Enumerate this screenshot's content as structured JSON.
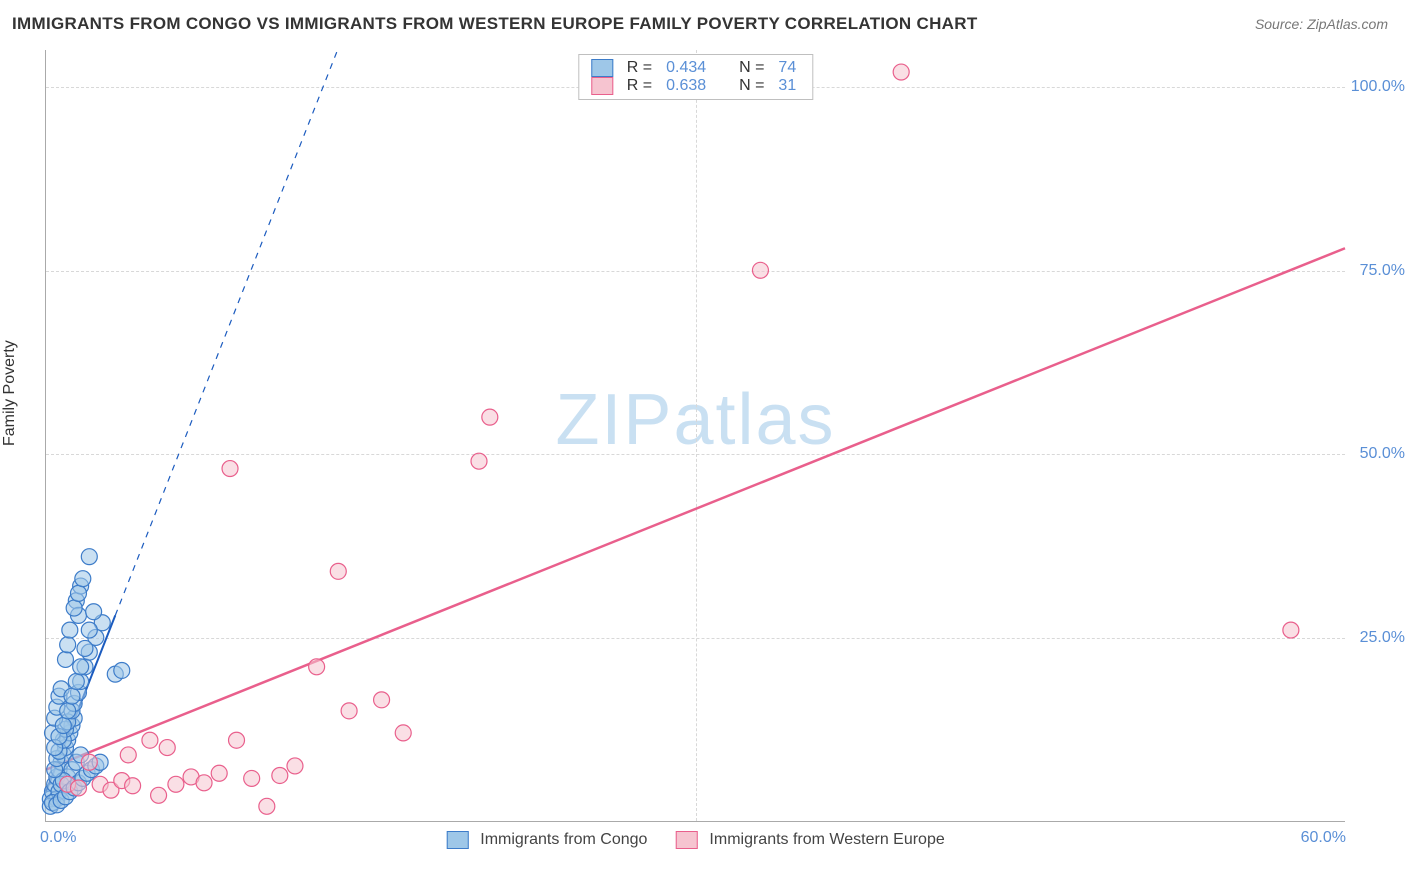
{
  "title": "IMMIGRANTS FROM CONGO VS IMMIGRANTS FROM WESTERN EUROPE FAMILY POVERTY CORRELATION CHART",
  "source": "Source: ZipAtlas.com",
  "ylabel": "Family Poverty",
  "watermark": {
    "bold": "ZIP",
    "rest": "atlas"
  },
  "chart": {
    "type": "scatter",
    "xlim": [
      0,
      60
    ],
    "ylim": [
      0,
      105
    ],
    "xtick_labels": [
      "0.0%",
      "60.0%"
    ],
    "xtick_positions": [
      0,
      60
    ],
    "ytick_labels": [
      "25.0%",
      "50.0%",
      "75.0%",
      "100.0%"
    ],
    "ytick_positions": [
      25,
      50,
      75,
      100
    ],
    "vgrid_positions": [
      30
    ],
    "background_color": "#ffffff",
    "grid_color": "#d8d8d8",
    "axis_color": "#aaaaaa",
    "series": [
      {
        "name": "Immigrants from Congo",
        "fill": "#9ec7e8",
        "stroke": "#3d7cc9",
        "marker_stroke": "#3d7cc9",
        "marker_fill": "rgba(158,199,232,0.55)",
        "marker_radius": 8,
        "R": "0.434",
        "N": "74",
        "trend": {
          "x1": 0,
          "y1": 4,
          "x2": 3.2,
          "y2": 28,
          "extend": true,
          "color": "#1b5bbf",
          "width": 2
        },
        "points": [
          [
            0.2,
            3
          ],
          [
            0.3,
            4
          ],
          [
            0.4,
            5
          ],
          [
            0.5,
            6
          ],
          [
            0.6,
            7
          ],
          [
            0.7,
            8
          ],
          [
            0.8,
            9
          ],
          [
            0.9,
            10
          ],
          [
            1.0,
            11
          ],
          [
            1.1,
            12
          ],
          [
            1.2,
            13
          ],
          [
            1.3,
            14
          ],
          [
            1.0,
            6
          ],
          [
            1.2,
            7
          ],
          [
            1.4,
            8
          ],
          [
            1.6,
            9
          ],
          [
            0.5,
            3
          ],
          [
            0.6,
            4
          ],
          [
            0.7,
            5
          ],
          [
            0.8,
            5.5
          ],
          [
            0.4,
            7
          ],
          [
            0.5,
            8.5
          ],
          [
            0.6,
            9.5
          ],
          [
            0.8,
            11
          ],
          [
            0.9,
            12.5
          ],
          [
            1.0,
            13.5
          ],
          [
            1.2,
            15
          ],
          [
            1.3,
            16
          ],
          [
            1.5,
            17.5
          ],
          [
            1.6,
            19
          ],
          [
            1.8,
            21
          ],
          [
            2.0,
            23
          ],
          [
            2.3,
            25
          ],
          [
            2.6,
            27
          ],
          [
            1.4,
            30
          ],
          [
            1.6,
            32
          ],
          [
            1.5,
            28
          ],
          [
            3.2,
            20
          ],
          [
            3.5,
            20.5
          ],
          [
            0.3,
            12
          ],
          [
            0.4,
            14
          ],
          [
            0.5,
            15.5
          ],
          [
            0.6,
            17
          ],
          [
            0.7,
            18
          ],
          [
            0.9,
            22
          ],
          [
            1.0,
            24
          ],
          [
            1.1,
            26
          ],
          [
            1.3,
            29
          ],
          [
            1.5,
            31
          ],
          [
            1.7,
            33
          ],
          [
            2.0,
            36
          ],
          [
            0.2,
            2
          ],
          [
            0.3,
            2.5
          ],
          [
            0.5,
            2.2
          ],
          [
            0.7,
            2.8
          ],
          [
            0.9,
            3.3
          ],
          [
            1.1,
            4
          ],
          [
            1.3,
            4.5
          ],
          [
            1.5,
            5.2
          ],
          [
            1.7,
            5.8
          ],
          [
            1.9,
            6.5
          ],
          [
            2.1,
            7
          ],
          [
            2.3,
            7.5
          ],
          [
            2.5,
            8
          ],
          [
            0.4,
            10
          ],
          [
            0.6,
            11.5
          ],
          [
            0.8,
            13
          ],
          [
            1.0,
            15
          ],
          [
            1.2,
            17
          ],
          [
            1.4,
            19
          ],
          [
            1.6,
            21
          ],
          [
            1.8,
            23.5
          ],
          [
            2.0,
            26
          ],
          [
            2.2,
            28.5
          ]
        ]
      },
      {
        "name": "Immigrants from Western Europe",
        "fill": "#f6c4d0",
        "stroke": "#e95f8c",
        "marker_stroke": "#e95f8c",
        "marker_fill": "rgba(246,196,208,0.55)",
        "marker_radius": 8,
        "R": "0.638",
        "N": "31",
        "trend": {
          "x1": 0,
          "y1": 7,
          "x2": 60,
          "y2": 78,
          "extend": false,
          "color": "#e95f8c",
          "width": 2.5
        },
        "points": [
          [
            1.0,
            5
          ],
          [
            1.5,
            4.5
          ],
          [
            2.5,
            5
          ],
          [
            3.0,
            4.2
          ],
          [
            3.5,
            5.5
          ],
          [
            4.0,
            4.8
          ],
          [
            4.8,
            11
          ],
          [
            5.2,
            3.5
          ],
          [
            5.6,
            10
          ],
          [
            6.0,
            5
          ],
          [
            6.7,
            6
          ],
          [
            7.3,
            5.2
          ],
          [
            8.0,
            6.5
          ],
          [
            8.8,
            11
          ],
          [
            9.5,
            5.8
          ],
          [
            10.2,
            2
          ],
          [
            10.8,
            6.2
          ],
          [
            11.5,
            7.5
          ],
          [
            12.5,
            21
          ],
          [
            13.5,
            34
          ],
          [
            14.0,
            15
          ],
          [
            15.5,
            16.5
          ],
          [
            16.5,
            12
          ],
          [
            8.5,
            48
          ],
          [
            20.0,
            49
          ],
          [
            20.5,
            55
          ],
          [
            39.5,
            102
          ],
          [
            57.5,
            26
          ],
          [
            33.0,
            75
          ],
          [
            2.0,
            8
          ],
          [
            3.8,
            9
          ]
        ]
      }
    ]
  },
  "legend_top": {
    "rows": [
      {
        "series_index": 0,
        "r_label": "R =",
        "n_label": "N ="
      },
      {
        "series_index": 1,
        "r_label": "R =",
        "n_label": "N ="
      }
    ]
  },
  "legend_bottom": [
    {
      "series_index": 0
    },
    {
      "series_index": 1
    }
  ]
}
